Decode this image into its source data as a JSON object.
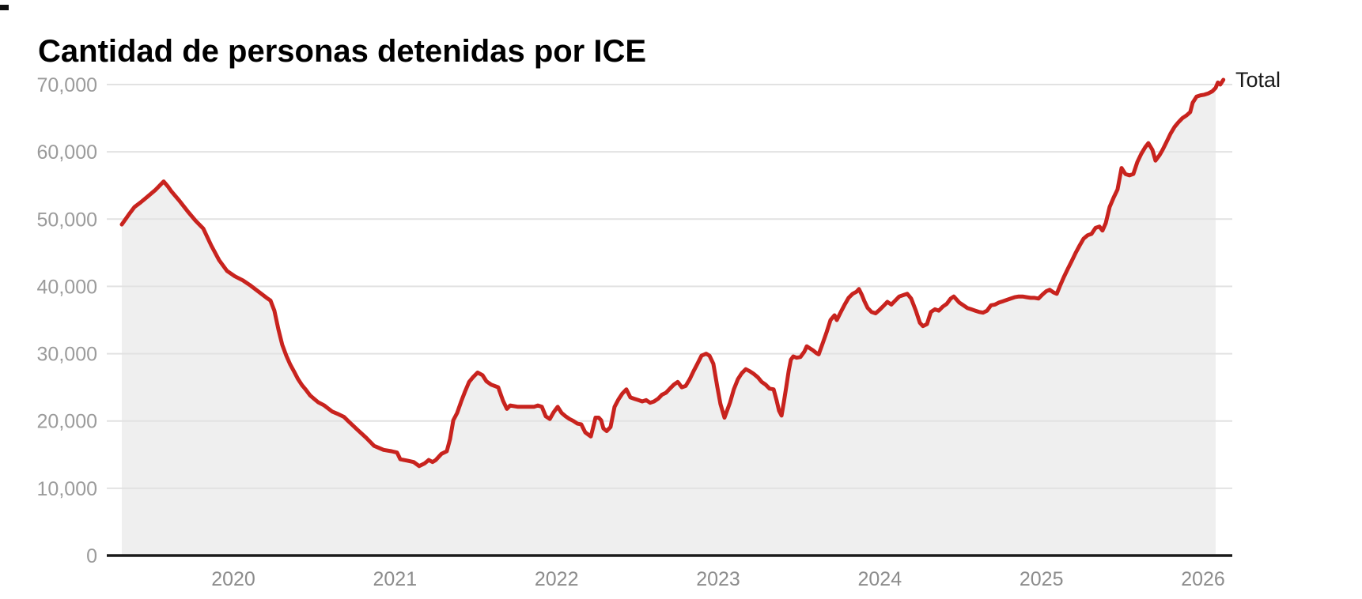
{
  "header": {
    "title": "Cantidad de personas detenidas por ICE"
  },
  "chart_data": {
    "type": "area",
    "title": "Cantidad de personas detenidas por ICE",
    "xlabel": "",
    "ylabel": "",
    "legend_position": "end-of-line",
    "grid": "horizontal",
    "end_label": "Total",
    "x_ticks": [
      2020,
      2021,
      2022,
      2023,
      2024,
      2025,
      2026
    ],
    "x_tick_labels": [
      "2020",
      "2021",
      "2022",
      "2023",
      "2024",
      "2025",
      "2026"
    ],
    "y_ticks": [
      0,
      10000,
      20000,
      30000,
      40000,
      50000,
      60000,
      70000
    ],
    "y_tick_labels": [
      "0",
      "10,000",
      "20,000",
      "30,000",
      "40,000",
      "50,000",
      "60,000",
      "70,000"
    ],
    "xlim": [
      2019.31,
      2026.18
    ],
    "ylim": [
      0,
      70000
    ],
    "fill_end_year": 2026.078,
    "colors": {
      "line": "#c8231e",
      "area_fill": "#efefef",
      "gridline": "#e2e2e2",
      "baseline": "#1a1a1a",
      "y_tick_text": "#9b9b9b",
      "x_tick_text": "#8c8c8c",
      "title_text": "#000000",
      "end_label_text": "#1a1a1a"
    },
    "series": [
      {
        "name": "Total",
        "points": [
          [
            2019.31,
            49200
          ],
          [
            2019.354,
            50700
          ],
          [
            2019.388,
            51800
          ],
          [
            2019.427,
            52500
          ],
          [
            2019.467,
            53300
          ],
          [
            2019.516,
            54300
          ],
          [
            2019.569,
            55600
          ],
          [
            2019.594,
            54900
          ],
          [
            2019.618,
            54100
          ],
          [
            2019.667,
            52700
          ],
          [
            2019.716,
            51200
          ],
          [
            2019.765,
            49800
          ],
          [
            2019.814,
            48600
          ],
          [
            2019.863,
            46100
          ],
          [
            2019.912,
            43900
          ],
          [
            2019.961,
            42300
          ],
          [
            2020.01,
            41500
          ],
          [
            2020.059,
            40900
          ],
          [
            2020.108,
            40100
          ],
          [
            2020.157,
            39200
          ],
          [
            2020.206,
            38300
          ],
          [
            2020.23,
            37900
          ],
          [
            2020.254,
            36400
          ],
          [
            2020.279,
            33600
          ],
          [
            2020.303,
            31300
          ],
          [
            2020.328,
            29700
          ],
          [
            2020.352,
            28400
          ],
          [
            2020.377,
            27300
          ],
          [
            2020.401,
            26200
          ],
          [
            2020.426,
            25300
          ],
          [
            2020.45,
            24600
          ],
          [
            2020.475,
            23800
          ],
          [
            2020.499,
            23300
          ],
          [
            2020.524,
            22800
          ],
          [
            2020.563,
            22300
          ],
          [
            2020.612,
            21400
          ],
          [
            2020.651,
            21000
          ],
          [
            2020.685,
            20600
          ],
          [
            2020.71,
            20000
          ],
          [
            2020.768,
            18700
          ],
          [
            2020.822,
            17500
          ],
          [
            2020.871,
            16300
          ],
          [
            2020.93,
            15700
          ],
          [
            2020.979,
            15500
          ],
          [
            2021.013,
            15300
          ],
          [
            2021.033,
            14300
          ],
          [
            2021.077,
            14100
          ],
          [
            2021.116,
            13900
          ],
          [
            2021.15,
            13300
          ],
          [
            2021.184,
            13700
          ],
          [
            2021.209,
            14200
          ],
          [
            2021.233,
            13900
          ],
          [
            2021.253,
            14200
          ],
          [
            2021.287,
            15100
          ],
          [
            2021.321,
            15500
          ],
          [
            2021.341,
            17300
          ],
          [
            2021.361,
            20100
          ],
          [
            2021.385,
            21200
          ],
          [
            2021.41,
            22900
          ],
          [
            2021.434,
            24400
          ],
          [
            2021.459,
            25800
          ],
          [
            2021.483,
            26500
          ],
          [
            2021.512,
            27200
          ],
          [
            2021.542,
            26800
          ],
          [
            2021.566,
            25900
          ],
          [
            2021.595,
            25400
          ],
          [
            2021.639,
            25000
          ],
          [
            2021.669,
            23000
          ],
          [
            2021.693,
            21800
          ],
          [
            2021.713,
            22300
          ],
          [
            2021.762,
            22100
          ],
          [
            2021.811,
            22100
          ],
          [
            2021.86,
            22100
          ],
          [
            2021.884,
            22300
          ],
          [
            2021.909,
            22100
          ],
          [
            2021.933,
            20700
          ],
          [
            2021.958,
            20300
          ],
          [
            2021.982,
            21300
          ],
          [
            2022.007,
            22100
          ],
          [
            2022.031,
            21200
          ],
          [
            2022.056,
            20700
          ],
          [
            2022.08,
            20300
          ],
          [
            2022.104,
            20000
          ],
          [
            2022.129,
            19600
          ],
          [
            2022.153,
            19500
          ],
          [
            2022.178,
            18300
          ],
          [
            2022.212,
            17700
          ],
          [
            2022.227,
            19100
          ],
          [
            2022.241,
            20500
          ],
          [
            2022.261,
            20500
          ],
          [
            2022.276,
            20100
          ],
          [
            2022.29,
            18900
          ],
          [
            2022.31,
            18500
          ],
          [
            2022.334,
            19100
          ],
          [
            2022.359,
            22100
          ],
          [
            2022.383,
            23200
          ],
          [
            2022.408,
            24100
          ],
          [
            2022.432,
            24700
          ],
          [
            2022.457,
            23500
          ],
          [
            2022.481,
            23300
          ],
          [
            2022.506,
            23100
          ],
          [
            2022.53,
            22900
          ],
          [
            2022.554,
            23100
          ],
          [
            2022.579,
            22700
          ],
          [
            2022.603,
            22900
          ],
          [
            2022.628,
            23300
          ],
          [
            2022.652,
            23900
          ],
          [
            2022.677,
            24200
          ],
          [
            2022.701,
            24800
          ],
          [
            2022.726,
            25400
          ],
          [
            2022.75,
            25800
          ],
          [
            2022.775,
            25000
          ],
          [
            2022.799,
            25200
          ],
          [
            2022.824,
            26200
          ],
          [
            2022.848,
            27400
          ],
          [
            2022.872,
            28500
          ],
          [
            2022.897,
            29700
          ],
          [
            2022.926,
            30000
          ],
          [
            2022.946,
            29700
          ],
          [
            2022.97,
            28500
          ],
          [
            2022.995,
            25000
          ],
          [
            2023.014,
            22500
          ],
          [
            2023.039,
            20500
          ],
          [
            2023.073,
            22700
          ],
          [
            2023.097,
            24700
          ],
          [
            2023.122,
            26200
          ],
          [
            2023.146,
            27100
          ],
          [
            2023.171,
            27700
          ],
          [
            2023.195,
            27400
          ],
          [
            2023.22,
            27000
          ],
          [
            2023.245,
            26500
          ],
          [
            2023.269,
            25800
          ],
          [
            2023.293,
            25400
          ],
          [
            2023.318,
            24800
          ],
          [
            2023.343,
            24700
          ],
          [
            2023.362,
            23000
          ],
          [
            2023.377,
            21500
          ],
          [
            2023.392,
            20800
          ],
          [
            2023.406,
            22700
          ],
          [
            2023.421,
            25000
          ],
          [
            2023.436,
            27400
          ],
          [
            2023.45,
            29100
          ],
          [
            2023.465,
            29600
          ],
          [
            2023.485,
            29400
          ],
          [
            2023.509,
            29500
          ],
          [
            2023.533,
            30300
          ],
          [
            2023.548,
            31100
          ],
          [
            2023.568,
            30800
          ],
          [
            2023.587,
            30500
          ],
          [
            2023.607,
            30100
          ],
          [
            2023.622,
            29900
          ],
          [
            2023.646,
            31500
          ],
          [
            2023.671,
            33200
          ],
          [
            2023.695,
            35000
          ],
          [
            2023.72,
            35700
          ],
          [
            2023.734,
            35000
          ],
          [
            2023.759,
            36200
          ],
          [
            2023.783,
            37300
          ],
          [
            2023.807,
            38300
          ],
          [
            2023.832,
            38900
          ],
          [
            2023.856,
            39200
          ],
          [
            2023.871,
            39600
          ],
          [
            2023.89,
            38700
          ],
          [
            2023.905,
            37800
          ],
          [
            2023.925,
            36800
          ],
          [
            2023.949,
            36200
          ],
          [
            2023.974,
            36000
          ],
          [
            2023.998,
            36500
          ],
          [
            2024.023,
            37100
          ],
          [
            2024.047,
            37700
          ],
          [
            2024.072,
            37300
          ],
          [
            2024.096,
            37900
          ],
          [
            2024.121,
            38500
          ],
          [
            2024.145,
            38700
          ],
          [
            2024.17,
            38900
          ],
          [
            2024.194,
            38200
          ],
          [
            2024.223,
            36400
          ],
          [
            2024.248,
            34600
          ],
          [
            2024.267,
            34100
          ],
          [
            2024.292,
            34400
          ],
          [
            2024.316,
            36200
          ],
          [
            2024.341,
            36600
          ],
          [
            2024.365,
            36400
          ],
          [
            2024.39,
            37000
          ],
          [
            2024.414,
            37400
          ],
          [
            2024.439,
            38200
          ],
          [
            2024.458,
            38500
          ],
          [
            2024.492,
            37600
          ],
          [
            2024.517,
            37200
          ],
          [
            2024.541,
            36800
          ],
          [
            2024.566,
            36600
          ],
          [
            2024.59,
            36400
          ],
          [
            2024.615,
            36200
          ],
          [
            2024.639,
            36100
          ],
          [
            2024.664,
            36400
          ],
          [
            2024.688,
            37200
          ],
          [
            2024.713,
            37300
          ],
          [
            2024.737,
            37600
          ],
          [
            2024.762,
            37800
          ],
          [
            2024.786,
            38000
          ],
          [
            2024.811,
            38200
          ],
          [
            2024.835,
            38400
          ],
          [
            2024.86,
            38500
          ],
          [
            2024.884,
            38500
          ],
          [
            2024.909,
            38400
          ],
          [
            2024.933,
            38300
          ],
          [
            2024.958,
            38300
          ],
          [
            2024.982,
            38200
          ],
          [
            2025.007,
            38800
          ],
          [
            2025.031,
            39300
          ],
          [
            2025.051,
            39500
          ],
          [
            2025.075,
            39100
          ],
          [
            2025.095,
            38900
          ],
          [
            2025.114,
            40000
          ],
          [
            2025.139,
            41400
          ],
          [
            2025.163,
            42600
          ],
          [
            2025.188,
            43800
          ],
          [
            2025.212,
            45000
          ],
          [
            2025.237,
            46100
          ],
          [
            2025.261,
            47100
          ],
          [
            2025.286,
            47600
          ],
          [
            2025.31,
            47800
          ],
          [
            2025.335,
            48700
          ],
          [
            2025.359,
            48900
          ],
          [
            2025.378,
            48300
          ],
          [
            2025.398,
            49400
          ],
          [
            2025.422,
            51800
          ],
          [
            2025.447,
            53200
          ],
          [
            2025.471,
            54400
          ],
          [
            2025.496,
            57600
          ],
          [
            2025.52,
            56700
          ],
          [
            2025.545,
            56500
          ],
          [
            2025.569,
            56700
          ],
          [
            2025.594,
            58500
          ],
          [
            2025.618,
            59700
          ],
          [
            2025.643,
            60700
          ],
          [
            2025.662,
            61300
          ],
          [
            2025.687,
            60300
          ],
          [
            2025.706,
            58700
          ],
          [
            2025.731,
            59500
          ],
          [
            2025.75,
            60300
          ],
          [
            2025.775,
            61500
          ],
          [
            2025.799,
            62700
          ],
          [
            2025.824,
            63700
          ],
          [
            2025.848,
            64400
          ],
          [
            2025.872,
            65000
          ],
          [
            2025.897,
            65400
          ],
          [
            2025.921,
            65900
          ],
          [
            2025.936,
            67300
          ],
          [
            2025.96,
            68200
          ],
          [
            2025.985,
            68400
          ],
          [
            2026.009,
            68500
          ],
          [
            2026.034,
            68700
          ],
          [
            2026.058,
            69000
          ],
          [
            2026.078,
            69500
          ],
          [
            2026.092,
            70300
          ],
          [
            2026.107,
            70000
          ],
          [
            2026.126,
            70700
          ]
        ]
      }
    ]
  }
}
